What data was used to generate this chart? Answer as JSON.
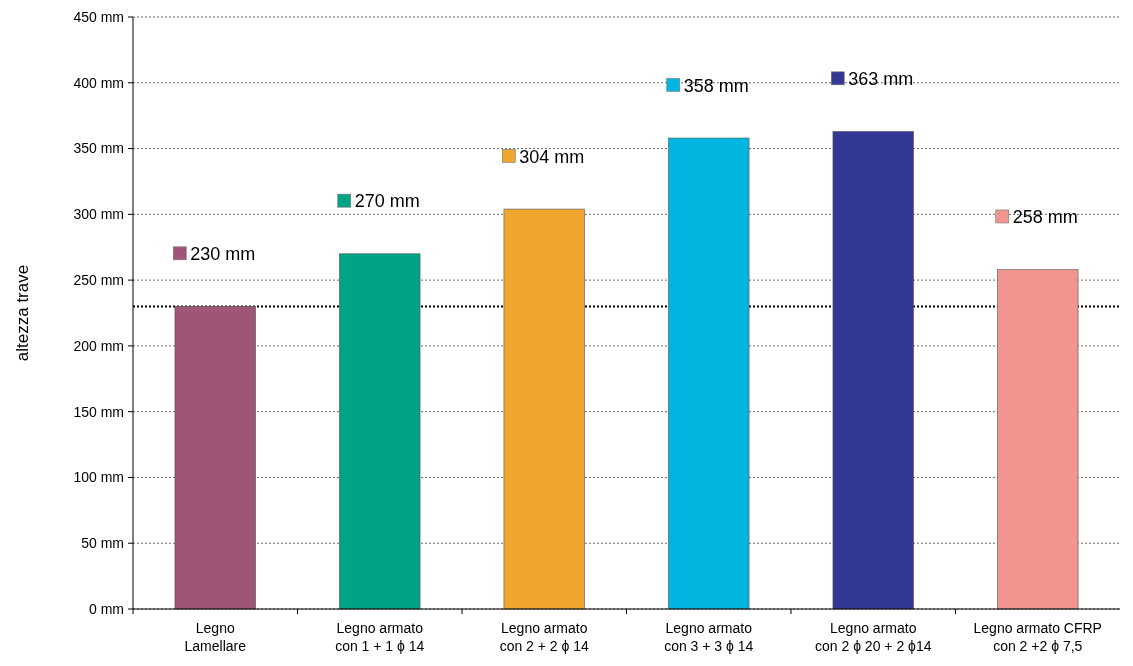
{
  "chart_data": {
    "type": "bar",
    "ylabel": "altezza trave",
    "categories": [
      "Legno\nLamellare",
      "Legno armato\ncon 1 + 1 ϕ 14",
      "Legno armato\ncon 2 + 2 ϕ 14",
      "Legno armato\ncon 3 + 3 ϕ 14",
      "Legno armato\ncon 2 ϕ 20 + 2 ϕ14",
      "Legno armato CFRP\ncon 2 +2 ϕ 7,5"
    ],
    "values": [
      230,
      270,
      304,
      358,
      363,
      258
    ],
    "colors": [
      "#9e5578",
      "#00a383",
      "#eea62e",
      "#00b6e0",
      "#323894",
      "#f0968e"
    ],
    "value_labels": [
      "230 mm",
      "270 mm",
      "304 mm",
      "358 mm",
      "363 mm",
      "258 mm"
    ],
    "ylim": [
      0,
      450
    ],
    "yticks": [
      {
        "value": 0,
        "label": "0 mm"
      },
      {
        "value": 50,
        "label": "50 mm"
      },
      {
        "value": 100,
        "label": "100 mm"
      },
      {
        "value": 150,
        "label": "150 mm"
      },
      {
        "value": 200,
        "label": "200 mm"
      },
      {
        "value": 250,
        "label": "250 mm"
      },
      {
        "value": 300,
        "label": "300 mm"
      },
      {
        "value": 350,
        "label": "350 mm"
      },
      {
        "value": 400,
        "label": "400 mm"
      },
      {
        "value": 450,
        "label": "450 mm"
      }
    ],
    "grid": "y",
    "ref_lines": [
      {
        "axis": "y",
        "value": 230,
        "color": "#000000",
        "line_style": "dotted"
      }
    ]
  }
}
